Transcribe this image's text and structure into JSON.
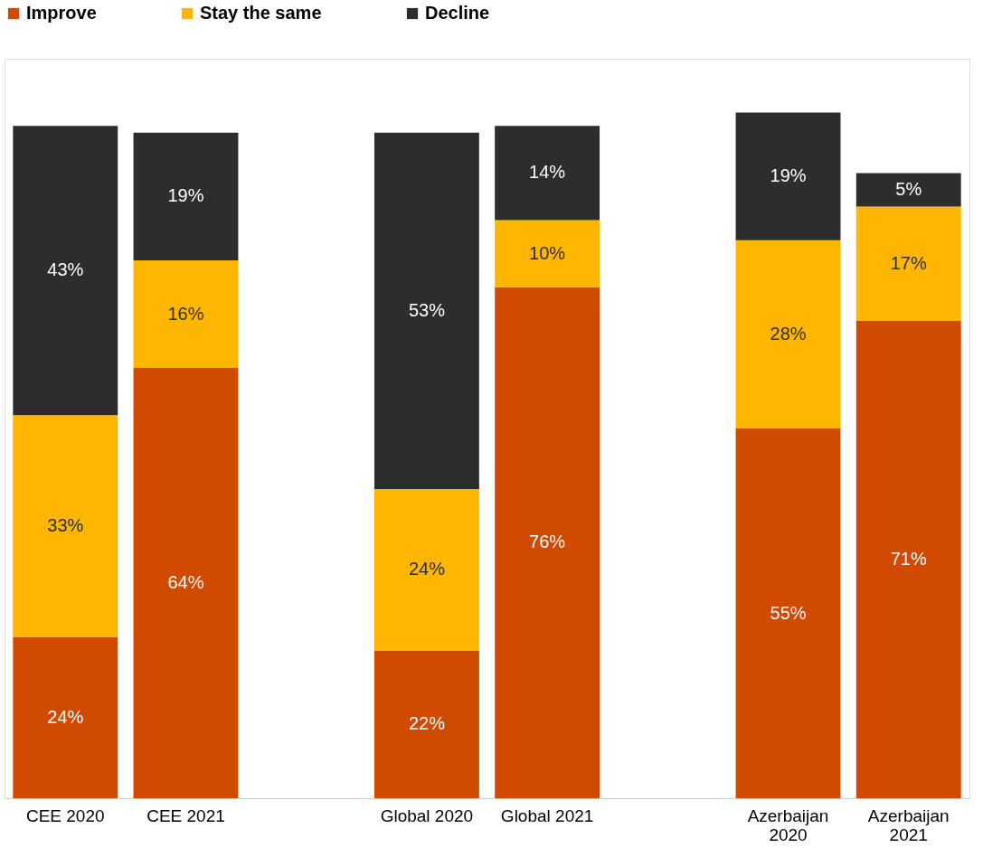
{
  "chart_data": {
    "type": "bar",
    "stacked": true,
    "legend": "top",
    "grid": false,
    "tick_labels": "x",
    "categories": [
      "CEE 2020",
      "CEE 2021",
      null,
      "Global 2020",
      "Global 2021",
      null,
      "Azerbaijan 2020",
      "Azerbaijan 2021"
    ],
    "series": [
      {
        "name": "Improve",
        "color": "#d04a02",
        "values": [
          24,
          64,
          null,
          22,
          76,
          null,
          55,
          71
        ],
        "value_labels": [
          "24%",
          "64%",
          null,
          "22%",
          "76%",
          null,
          "55%",
          "71%"
        ]
      },
      {
        "name": "Stay the same",
        "color": "#ffb600",
        "values": [
          33,
          16,
          null,
          24,
          10,
          null,
          28,
          17
        ],
        "value_labels": [
          "33%",
          "16%",
          null,
          "24%",
          "10%",
          null,
          "28%",
          "17%"
        ]
      },
      {
        "name": "Decline",
        "color": "#2d2d2d",
        "values": [
          43,
          19,
          null,
          53,
          14,
          null,
          19,
          5
        ],
        "value_labels": [
          "43%",
          "19%",
          null,
          "53%",
          "14%",
          null,
          "19%",
          "5%"
        ]
      }
    ]
  }
}
